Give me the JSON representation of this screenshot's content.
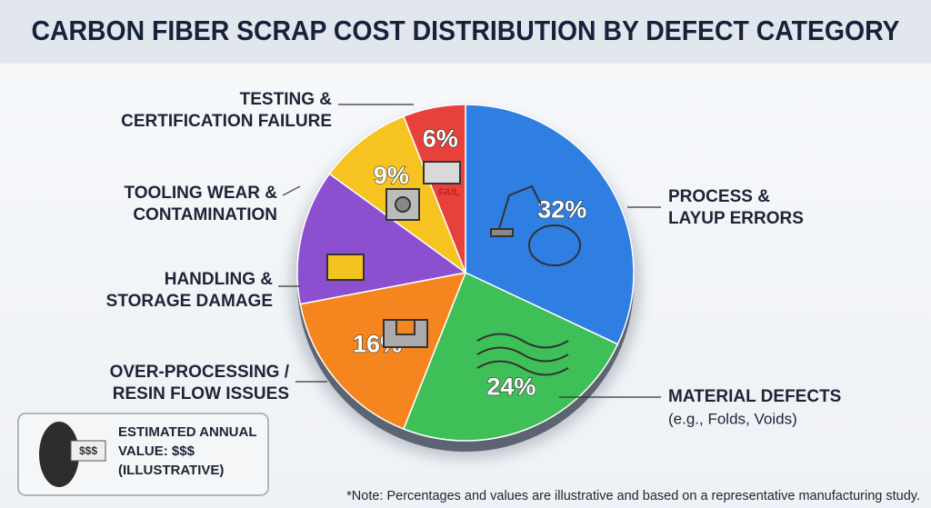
{
  "chart_data": {
    "type": "pie",
    "title": "CARBON FIBER SCRAP COST DISTRIBUTION BY DEFECT CATEGORY",
    "categories": [
      "PROCESS &\nLAYUP ERRORS",
      "MATERIAL DEFECTS",
      "OVER-PROCESSING /\nRESIN FLOW ISSUES",
      "HANDLING &\nSTORAGE DAMAGE",
      "TOOLING WEAR &\nCONTAMINATION",
      "TESTING &\nCERTIFICATION FAILURE"
    ],
    "sublabels": [
      null,
      "(e.g., Folds, Voids)",
      null,
      null,
      null,
      null
    ],
    "values": [
      32,
      24,
      16,
      13,
      9,
      6
    ],
    "value_labels": [
      "32%",
      "24%",
      "16%",
      null,
      "9%",
      "6%"
    ],
    "colors": [
      "#2f7ee2",
      "#3fbf57",
      "#f5861f",
      "#8b4fd0",
      "#f7c320",
      "#e8413b"
    ]
  },
  "icons": {
    "fail_stamp": "FAIL"
  },
  "info_box": {
    "text": "ESTIMATED ANNUAL\nVALUE: $$$\n(ILLUSTRATIVE)",
    "sign": "$$$"
  },
  "footnote": "*Note: Percentages and values are illustrative and based on a representative manufacturing study."
}
